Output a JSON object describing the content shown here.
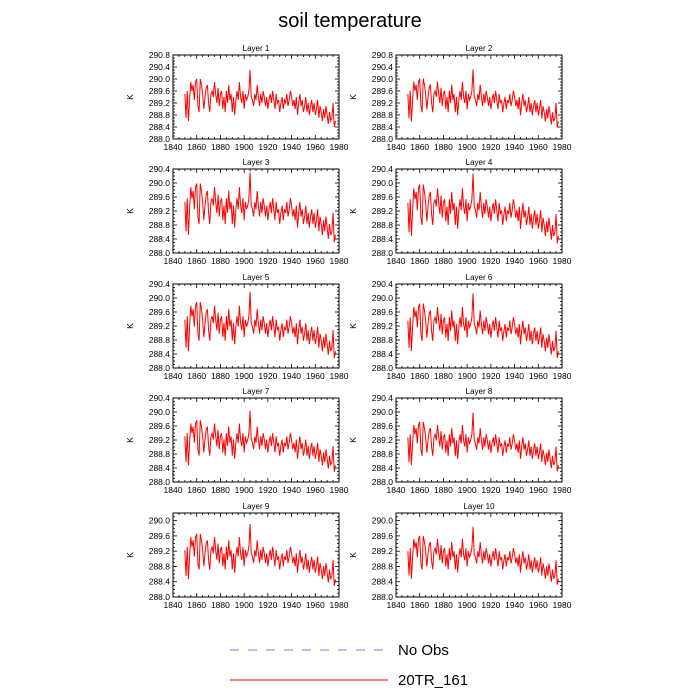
{
  "title": "soil temperature",
  "legend": {
    "entries": [
      {
        "label": "No Obs",
        "color": "#7f7fff",
        "style": "dashed"
      },
      {
        "label": "20TR_161",
        "color": "#ff0000",
        "style": "solid"
      }
    ]
  },
  "chart_data": {
    "type": "line",
    "x_start": 1850,
    "x_end": 1977,
    "xlim": [
      1840,
      1980
    ],
    "xticks": [
      1840,
      1860,
      1880,
      1900,
      1920,
      1940,
      1960,
      1980
    ],
    "ylabel": "K",
    "series_color": "#ff0000",
    "series_name": "20TR_161",
    "base_series": [
      289.5,
      288.7,
      289.6,
      288.6,
      289.3,
      289.9,
      289.6,
      289.8,
      289.3,
      289.9,
      290.0,
      289.1,
      288.9,
      290.0,
      289.8,
      289.5,
      289.0,
      289.4,
      289.7,
      289.8,
      289.2,
      288.9,
      289.5,
      289.6,
      289.4,
      289.9,
      289.5,
      289.2,
      289.7,
      289.1,
      289.5,
      289.6,
      289.0,
      289.4,
      288.9,
      289.6,
      289.2,
      289.8,
      289.3,
      289.5,
      288.9,
      289.4,
      288.8,
      289.3,
      289.6,
      289.3,
      289.9,
      289.4,
      289.2,
      289.6,
      289.0,
      289.5,
      289.3,
      289.4,
      289.6,
      290.3,
      289.4,
      289.3,
      289.1,
      289.5,
      289.3,
      289.8,
      289.4,
      289.1,
      289.5,
      289.2,
      289.6,
      289.4,
      289.1,
      289.4,
      289.0,
      289.3,
      289.5,
      289.2,
      289.6,
      289.3,
      289.0,
      289.5,
      289.2,
      289.3,
      288.9,
      289.2,
      289.4,
      289.0,
      289.3,
      289.2,
      289.5,
      289.1,
      289.3,
      289.6,
      289.4,
      289.1,
      289.3,
      289.0,
      289.4,
      288.8,
      289.2,
      289.5,
      289.1,
      289.3,
      288.9,
      289.1,
      289.4,
      288.9,
      289.2,
      288.8,
      289.1,
      289.3,
      288.9,
      289.2,
      288.8,
      289.0,
      289.3,
      288.7,
      289.1,
      288.9,
      288.6,
      289.0,
      288.7,
      289.1,
      288.8,
      288.5,
      288.9,
      288.6,
      288.7,
      289.2,
      288.4,
      288.6
    ],
    "panels": [
      {
        "title": "Layer 1",
        "ylim": [
          288.0,
          290.8
        ],
        "yticks": [
          "290.8",
          "290.4",
          "290.0",
          "289.6",
          "289.2",
          "288.8",
          "288.4",
          "288.0"
        ],
        "amp": 1.0,
        "offset": 0.0
      },
      {
        "title": "Layer 2",
        "ylim": [
          288.0,
          290.8
        ],
        "yticks": [
          "290.8",
          "290.4",
          "290.0",
          "289.6",
          "289.2",
          "288.8",
          "288.4",
          "288.0"
        ],
        "amp": 1.02,
        "offset": 0.0
      },
      {
        "title": "Layer 3",
        "ylim": [
          288.0,
          290.4
        ],
        "yticks": [
          "290.4",
          "290.0",
          "289.6",
          "289.2",
          "288.8",
          "288.4",
          "288.0"
        ],
        "amp": 1.05,
        "offset": -0.05
      },
      {
        "title": "Layer 4",
        "ylim": [
          288.0,
          290.4
        ],
        "yticks": [
          "290.4",
          "290.0",
          "289.6",
          "289.2",
          "288.8",
          "288.4",
          "288.0"
        ],
        "amp": 1.05,
        "offset": -0.08
      },
      {
        "title": "Layer 5",
        "ylim": [
          288.0,
          290.4
        ],
        "yticks": [
          "290.4",
          "290.0",
          "289.6",
          "289.2",
          "288.8",
          "288.4",
          "288.0"
        ],
        "amp": 1.0,
        "offset": -0.12
      },
      {
        "title": "Layer 6",
        "ylim": [
          288.0,
          290.4
        ],
        "yticks": [
          "290.4",
          "290.0",
          "289.6",
          "289.2",
          "288.8",
          "288.4",
          "288.0"
        ],
        "amp": 0.97,
        "offset": -0.14
      },
      {
        "title": "Layer 7",
        "ylim": [
          288.0,
          290.4
        ],
        "yticks": [
          "290.4",
          "290.0",
          "289.6",
          "289.2",
          "288.8",
          "288.4",
          "288.0"
        ],
        "amp": 0.92,
        "offset": -0.18
      },
      {
        "title": "Layer 8",
        "ylim": [
          288.0,
          290.4
        ],
        "yticks": [
          "290.4",
          "290.0",
          "289.6",
          "289.2",
          "288.8",
          "288.4",
          "288.0"
        ],
        "amp": 0.88,
        "offset": -0.2
      },
      {
        "title": "Layer 9",
        "ylim": [
          288.0,
          290.2
        ],
        "yticks": [
          "290.0",
          "289.6",
          "289.2",
          "288.8",
          "288.4",
          "288.0"
        ],
        "amp": 0.85,
        "offset": -0.24
      },
      {
        "title": "Layer 10",
        "ylim": [
          288.0,
          290.2
        ],
        "yticks": [
          "290.0",
          "289.6",
          "289.2",
          "288.8",
          "288.4",
          "288.0"
        ],
        "amp": 0.8,
        "offset": -0.26
      }
    ]
  }
}
